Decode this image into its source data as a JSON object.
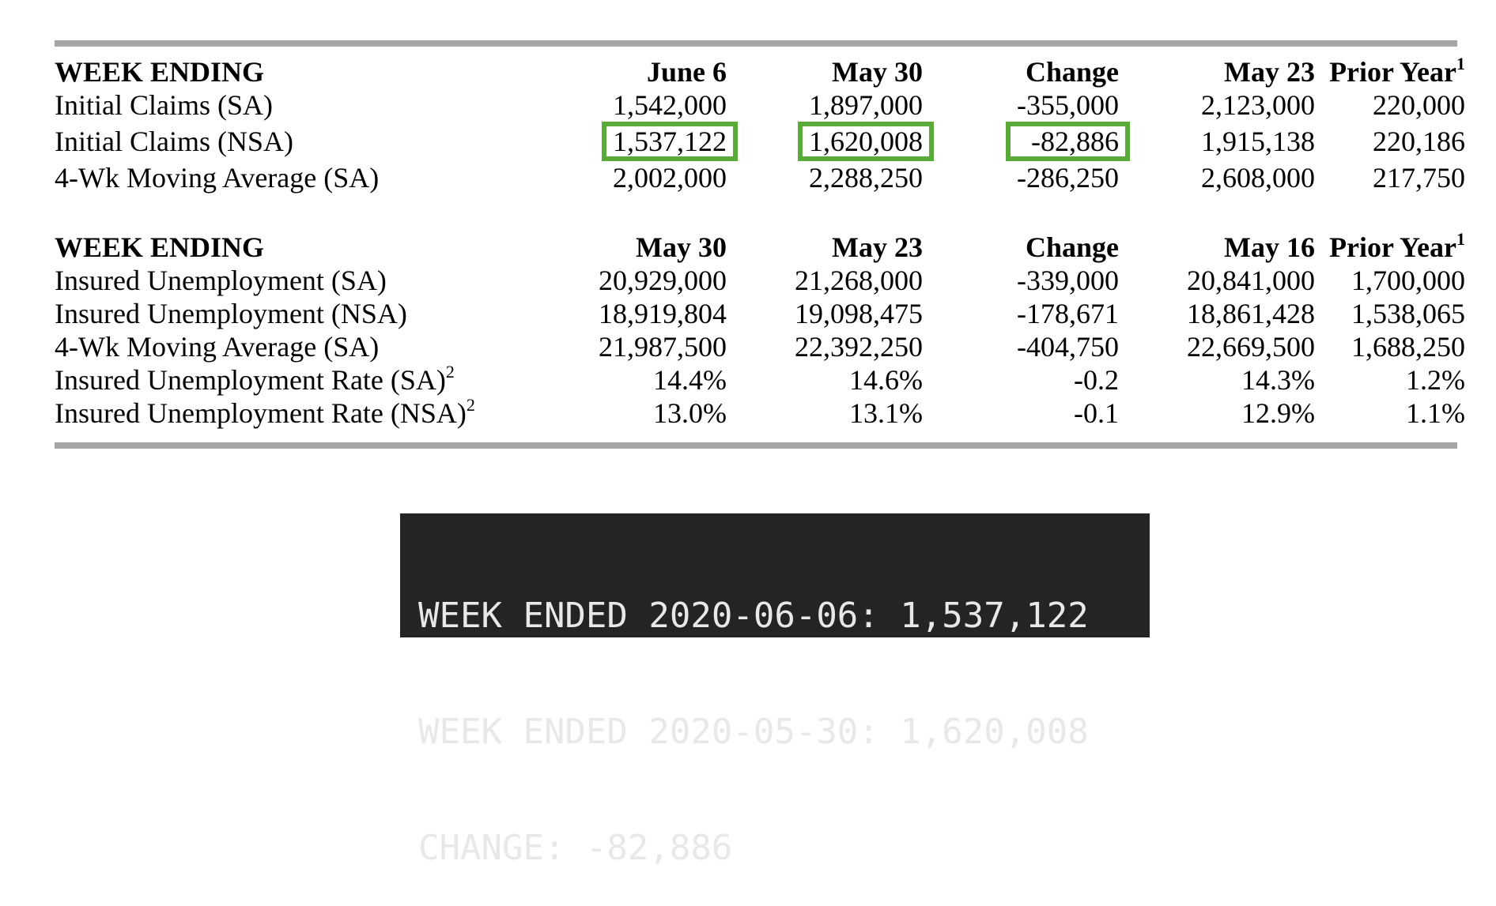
{
  "table1": {
    "headers": [
      "WEEK ENDING",
      "June 6",
      "May 30",
      "Change",
      "May 23",
      "Prior Year"
    ],
    "prior_year_footnote": "1",
    "rows": [
      {
        "label": "Initial Claims (SA)",
        "cells": [
          "1,542,000",
          "1,897,000",
          "-355,000",
          "2,123,000",
          "220,000"
        ]
      },
      {
        "label": "Initial Claims (NSA)",
        "cells": [
          "1,537,122",
          "1,620,008",
          "-82,886",
          "1,915,138",
          "220,186"
        ]
      },
      {
        "label": "4-Wk Moving Average (SA)",
        "cells": [
          "2,002,000",
          "2,288,250",
          "-286,250",
          "2,608,000",
          "217,750"
        ]
      }
    ]
  },
  "table2": {
    "headers": [
      "WEEK ENDING",
      "May 30",
      "May 23",
      "Change",
      "May 16",
      "Prior Year"
    ],
    "prior_year_footnote": "1",
    "rows": [
      {
        "label": "Insured Unemployment (SA)",
        "footnote": "",
        "cells": [
          "20,929,000",
          "21,268,000",
          "-339,000",
          "20,841,000",
          "1,700,000"
        ]
      },
      {
        "label": "Insured Unemployment (NSA)",
        "footnote": "",
        "cells": [
          "18,919,804",
          "19,098,475",
          "-178,671",
          "18,861,428",
          "1,538,065"
        ]
      },
      {
        "label": "4-Wk Moving Average (SA)",
        "footnote": "",
        "cells": [
          "21,987,500",
          "22,392,250",
          "-404,750",
          "22,669,500",
          "1,688,250"
        ]
      },
      {
        "label": "Insured Unemployment Rate (SA)",
        "footnote": "2",
        "cells": [
          "14.4%",
          "14.6%",
          "-0.2",
          "14.3%",
          "1.2%"
        ]
      },
      {
        "label": "Insured Unemployment Rate (NSA)",
        "footnote": "2",
        "cells": [
          "13.0%",
          "13.1%",
          "-0.1",
          "12.9%",
          "1.1%"
        ]
      }
    ]
  },
  "highlight_color": "#5aaa3a",
  "rule_color": "#a6a6a6",
  "terminal": {
    "background": "#242424",
    "lines": [
      "WEEK ENDED 2020-06-06: 1,537,122",
      "WEEK ENDED 2020-05-30: 1,620,008",
      "CHANGE: -82,886"
    ]
  }
}
